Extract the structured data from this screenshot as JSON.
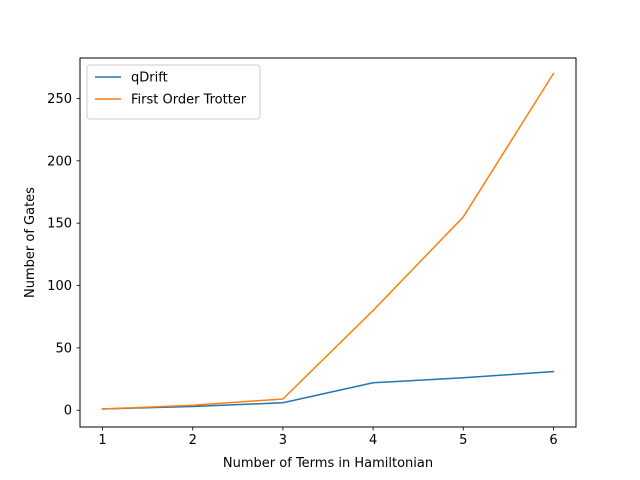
{
  "chart_data": {
    "type": "line",
    "title": "",
    "xlabel": "Number of Terms in Hamiltonian",
    "ylabel": "Number of Gates",
    "x": [
      1,
      2,
      3,
      4,
      5,
      6
    ],
    "xlim": [
      0.75,
      6.25
    ],
    "ylim": [
      -13.45,
      282.45
    ],
    "xticks": [
      1,
      2,
      3,
      4,
      5,
      6
    ],
    "yticks": [
      0,
      50,
      100,
      150,
      200,
      250
    ],
    "grid": false,
    "legend_position": "top-left",
    "series": [
      {
        "name": "qDrift",
        "color": "#1f77b4",
        "values": [
          1,
          3,
          6,
          22,
          26,
          31
        ]
      },
      {
        "name": "First Order Trotter",
        "color": "#ff7f0e",
        "values": [
          1,
          4,
          9,
          80,
          155,
          270
        ]
      }
    ]
  }
}
